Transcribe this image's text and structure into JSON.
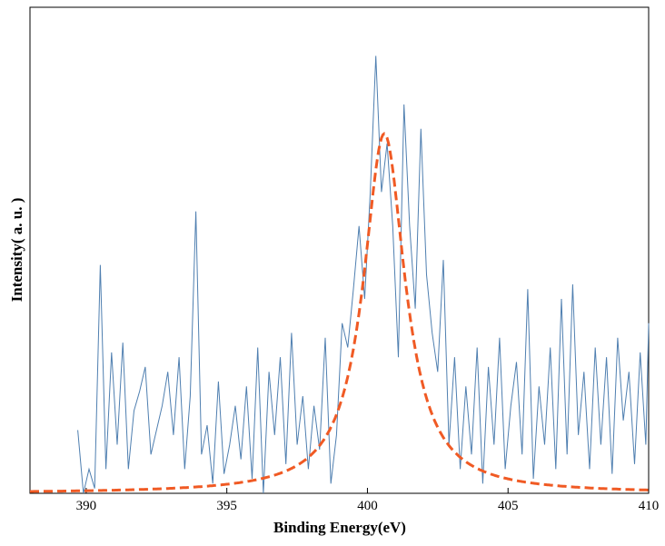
{
  "chart_data": {
    "type": "line",
    "title": "",
    "xlabel": "Binding Energy(eV)",
    "ylabel": "Intensity( a. u. )",
    "xlim": [
      388,
      410
    ],
    "ylim": [
      0,
      1.0
    ],
    "x_ticks": [
      390,
      395,
      400,
      405,
      410
    ],
    "x_tick_labels": [
      "390",
      "395",
      "400",
      "405",
      "410"
    ],
    "grid": false,
    "legend": "none",
    "series": [
      {
        "style": "raw-noisy-line",
        "color": "#4f7fb0",
        "x_range": [
          389.7,
          410
        ],
        "points": [
          [
            389.7,
            0.13
          ],
          [
            389.9,
            0.0
          ],
          [
            390.1,
            0.05
          ],
          [
            390.3,
            0.01
          ],
          [
            390.5,
            0.47
          ],
          [
            390.7,
            0.05
          ],
          [
            390.9,
            0.29
          ],
          [
            391.1,
            0.1
          ],
          [
            391.3,
            0.31
          ],
          [
            391.5,
            0.05
          ],
          [
            391.7,
            0.17
          ],
          [
            391.9,
            0.21
          ],
          [
            392.1,
            0.26
          ],
          [
            392.3,
            0.08
          ],
          [
            392.5,
            0.13
          ],
          [
            392.7,
            0.18
          ],
          [
            392.9,
            0.25
          ],
          [
            393.1,
            0.12
          ],
          [
            393.3,
            0.28
          ],
          [
            393.5,
            0.05
          ],
          [
            393.7,
            0.2
          ],
          [
            393.9,
            0.58
          ],
          [
            394.1,
            0.08
          ],
          [
            394.3,
            0.14
          ],
          [
            394.5,
            0.02
          ],
          [
            394.7,
            0.23
          ],
          [
            394.9,
            0.04
          ],
          [
            395.1,
            0.1
          ],
          [
            395.3,
            0.18
          ],
          [
            395.5,
            0.07
          ],
          [
            395.7,
            0.22
          ],
          [
            395.9,
            0.03
          ],
          [
            396.1,
            0.3
          ],
          [
            396.3,
            0.0
          ],
          [
            396.5,
            0.25
          ],
          [
            396.7,
            0.12
          ],
          [
            396.9,
            0.28
          ],
          [
            397.1,
            0.06
          ],
          [
            397.3,
            0.33
          ],
          [
            397.5,
            0.1
          ],
          [
            397.7,
            0.2
          ],
          [
            397.9,
            0.05
          ],
          [
            398.1,
            0.18
          ],
          [
            398.3,
            0.09
          ],
          [
            398.5,
            0.32
          ],
          [
            398.7,
            0.02
          ],
          [
            398.9,
            0.12
          ],
          [
            399.1,
            0.35
          ],
          [
            399.3,
            0.3
          ],
          [
            399.5,
            0.42
          ],
          [
            399.7,
            0.55
          ],
          [
            399.9,
            0.4
          ],
          [
            400.1,
            0.62
          ],
          [
            400.3,
            0.9
          ],
          [
            400.5,
            0.62
          ],
          [
            400.7,
            0.72
          ],
          [
            400.9,
            0.55
          ],
          [
            401.1,
            0.28
          ],
          [
            401.3,
            0.8
          ],
          [
            401.5,
            0.55
          ],
          [
            401.7,
            0.38
          ],
          [
            401.9,
            0.75
          ],
          [
            402.1,
            0.45
          ],
          [
            402.3,
            0.33
          ],
          [
            402.5,
            0.25
          ],
          [
            402.7,
            0.48
          ],
          [
            402.9,
            0.1
          ],
          [
            403.1,
            0.28
          ],
          [
            403.3,
            0.05
          ],
          [
            403.5,
            0.22
          ],
          [
            403.7,
            0.08
          ],
          [
            403.9,
            0.3
          ],
          [
            404.1,
            0.02
          ],
          [
            404.3,
            0.26
          ],
          [
            404.5,
            0.1
          ],
          [
            404.7,
            0.32
          ],
          [
            404.9,
            0.05
          ],
          [
            405.1,
            0.18
          ],
          [
            405.3,
            0.27
          ],
          [
            405.5,
            0.08
          ],
          [
            405.7,
            0.42
          ],
          [
            405.9,
            0.03
          ],
          [
            406.1,
            0.22
          ],
          [
            406.3,
            0.1
          ],
          [
            406.5,
            0.3
          ],
          [
            406.7,
            0.05
          ],
          [
            406.9,
            0.4
          ],
          [
            407.1,
            0.08
          ],
          [
            407.3,
            0.43
          ],
          [
            407.5,
            0.12
          ],
          [
            407.7,
            0.25
          ],
          [
            407.9,
            0.05
          ],
          [
            408.1,
            0.3
          ],
          [
            408.3,
            0.1
          ],
          [
            408.5,
            0.28
          ],
          [
            408.7,
            0.04
          ],
          [
            408.9,
            0.32
          ],
          [
            409.1,
            0.15
          ],
          [
            409.3,
            0.25
          ],
          [
            409.5,
            0.06
          ],
          [
            409.7,
            0.29
          ],
          [
            409.9,
            0.1
          ],
          [
            410.0,
            0.35
          ]
        ]
      },
      {
        "style": "fit-dashed-line",
        "color": "#f05a24",
        "shape": "lorentzian",
        "center": 400.6,
        "height": 0.74,
        "half_width": 0.9,
        "baseline": 0.0
      }
    ]
  }
}
